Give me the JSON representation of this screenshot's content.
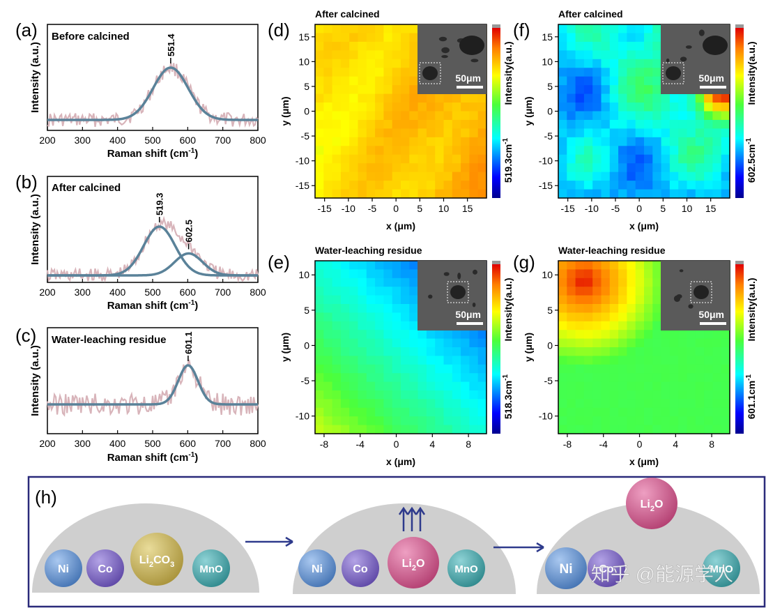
{
  "raman_panels": [
    {
      "label": "(a)",
      "title": "Before calcined",
      "ylabel": "Intensity (a.u.)",
      "xlabel": "Raman shift (cm",
      "xlabel_sup": "-1",
      "xlabel_end": ")",
      "xticks": [
        "200",
        "300",
        "400",
        "500",
        "600",
        "700",
        "800"
      ],
      "peaks": [
        {
          "label": "551.4"
        }
      ]
    },
    {
      "label": "(b)",
      "title": "After calcined",
      "ylabel": "Intensity (a.u.)",
      "xlabel": "Raman shift (cm",
      "xlabel_sup": "-1",
      "xlabel_end": ")",
      "xticks": [
        "200",
        "300",
        "400",
        "500",
        "600",
        "700",
        "800"
      ],
      "peaks": [
        {
          "label": "519.3"
        },
        {
          "label": "602.5"
        }
      ]
    },
    {
      "label": "(c)",
      "title": "Water-leaching residue",
      "ylabel": "Intensity (a.u.)",
      "xlabel": "Raman shift (cm",
      "xlabel_sup": "-1",
      "xlabel_end": ")",
      "xticks": [
        "200",
        "300",
        "400",
        "500",
        "600",
        "700",
        "800"
      ],
      "peaks": [
        {
          "label": "601.1"
        }
      ]
    }
  ],
  "maps": [
    {
      "label": "(d)",
      "title": "After calcined",
      "xlabel": "x (μm)",
      "ylabel": "y (μm)",
      "xticks": [
        "-15",
        "-10",
        "-5",
        "0",
        "5",
        "10",
        "15"
      ],
      "yticks": [
        "15",
        "10",
        "5",
        "0",
        "-5",
        "-10",
        "-15"
      ],
      "scalebar": "50μm",
      "colorbar_label": "Intensity(a.u.)",
      "colorbar_peak": "519.3cm",
      "colorbar_sup": "-1"
    },
    {
      "label": "(f)",
      "title": "After calcined",
      "xlabel": "x (μm)",
      "ylabel": "y (μm)",
      "xticks": [
        "-15",
        "-10",
        "-5",
        "0",
        "5",
        "10",
        "15"
      ],
      "yticks": [
        "15",
        "10",
        "5",
        "0",
        "-5",
        "-10",
        "-15"
      ],
      "scalebar": "50μm",
      "colorbar_label": "Intensity(a.u.)",
      "colorbar_peak": "602.5cm",
      "colorbar_sup": "-1"
    },
    {
      "label": "(e)",
      "title": "Water-leaching residue",
      "xlabel": "x (μm)",
      "ylabel": "y (μm)",
      "xticks": [
        "-8",
        "-4",
        "0",
        "4",
        "8"
      ],
      "yticks": [
        "10",
        "5",
        "0",
        "-5",
        "-10"
      ],
      "scalebar": "50μm",
      "colorbar_label": "Intensity(a.u.)",
      "colorbar_peak": "518.3cm",
      "colorbar_sup": "-1"
    },
    {
      "label": "(g)",
      "title": "Water-leaching residue",
      "xlabel": "x (μm)",
      "ylabel": "y (μm)",
      "xticks": [
        "-8",
        "-4",
        "0",
        "4",
        "8"
      ],
      "yticks": [
        "10",
        "5",
        "0",
        "-5",
        "-10"
      ],
      "scalebar": "50μm",
      "colorbar_label": "Intensity(a.u.)",
      "colorbar_peak": "601.1cm",
      "colorbar_sup": "-1"
    }
  ],
  "scheme": {
    "label": "(h)",
    "stage1": {
      "ni": "Ni",
      "co": "Co",
      "li2co3_main": "Li",
      "li2co3_sub": "2",
      "li2co3_end": "CO",
      "li2co3_sub2": "3",
      "mno": "MnO"
    },
    "stage2": {
      "ni": "Ni",
      "co": "Co",
      "li2o_main": "Li",
      "li2o_sub": "2",
      "li2o_end": "O",
      "mno": "MnO"
    },
    "stage3": {
      "ni": "Ni",
      "co": "Co",
      "li2o_main": "Li",
      "li2o_sub": "2",
      "li2o_end": "O",
      "mno": "MnO"
    }
  },
  "watermark": "知乎 @能源学人",
  "colors": {
    "fit": "#5a8299",
    "raw": "#d8b4ba",
    "frame": "#2a2a7a",
    "arrow": "#2e3a8c",
    "dome": "#cfcfcf",
    "ni": "#5b8fd1",
    "co": "#7a62c2",
    "li2co3": "#c9b659",
    "li2o": "#d0568a",
    "mno": "#3fa3a8"
  },
  "chart_data": [
    {
      "type": "line",
      "title": "Before calcined",
      "xlabel": "Raman shift (cm-1)",
      "ylabel": "Intensity (a.u.)",
      "xlim": [
        200,
        800
      ],
      "series": [
        {
          "name": "fit",
          "peaks": [
            {
              "center": 551.4,
              "height": 1.0,
              "width": 50
            }
          ]
        }
      ]
    },
    {
      "type": "line",
      "title": "After calcined",
      "xlabel": "Raman shift (cm-1)",
      "ylabel": "Intensity (a.u.)",
      "xlim": [
        200,
        800
      ],
      "series": [
        {
          "name": "fit-519.3",
          "peaks": [
            {
              "center": 519.3,
              "height": 1.0,
              "width": 45
            }
          ]
        },
        {
          "name": "fit-602.5",
          "peaks": [
            {
              "center": 602.5,
              "height": 0.45,
              "width": 40
            }
          ]
        }
      ]
    },
    {
      "type": "line",
      "title": "Water-leaching residue",
      "xlabel": "Raman shift (cm-1)",
      "ylabel": "Intensity (a.u.)",
      "xlim": [
        200,
        800
      ],
      "series": [
        {
          "name": "fit",
          "peaks": [
            {
              "center": 601.1,
              "height": 1.0,
              "width": 28
            }
          ]
        }
      ]
    },
    {
      "type": "heatmap",
      "title": "After calcined",
      "xlim": [
        -17,
        19
      ],
      "ylim": [
        -17.5,
        17.5
      ],
      "colorbar": "519.3 cm-1"
    },
    {
      "type": "heatmap",
      "title": "After calcined",
      "xlim": [
        -17,
        19
      ],
      "ylim": [
        -17.5,
        17.5
      ],
      "colorbar": "602.5 cm-1"
    },
    {
      "type": "heatmap",
      "title": "Water-leaching residue",
      "xlim": [
        -9,
        10
      ],
      "ylim": [
        -12.5,
        12
      ],
      "colorbar": "518.3 cm-1"
    },
    {
      "type": "heatmap",
      "title": "Water-leaching residue",
      "xlim": [
        -9,
        10
      ],
      "ylim": [
        -12.5,
        12
      ],
      "colorbar": "601.1 cm-1"
    }
  ]
}
